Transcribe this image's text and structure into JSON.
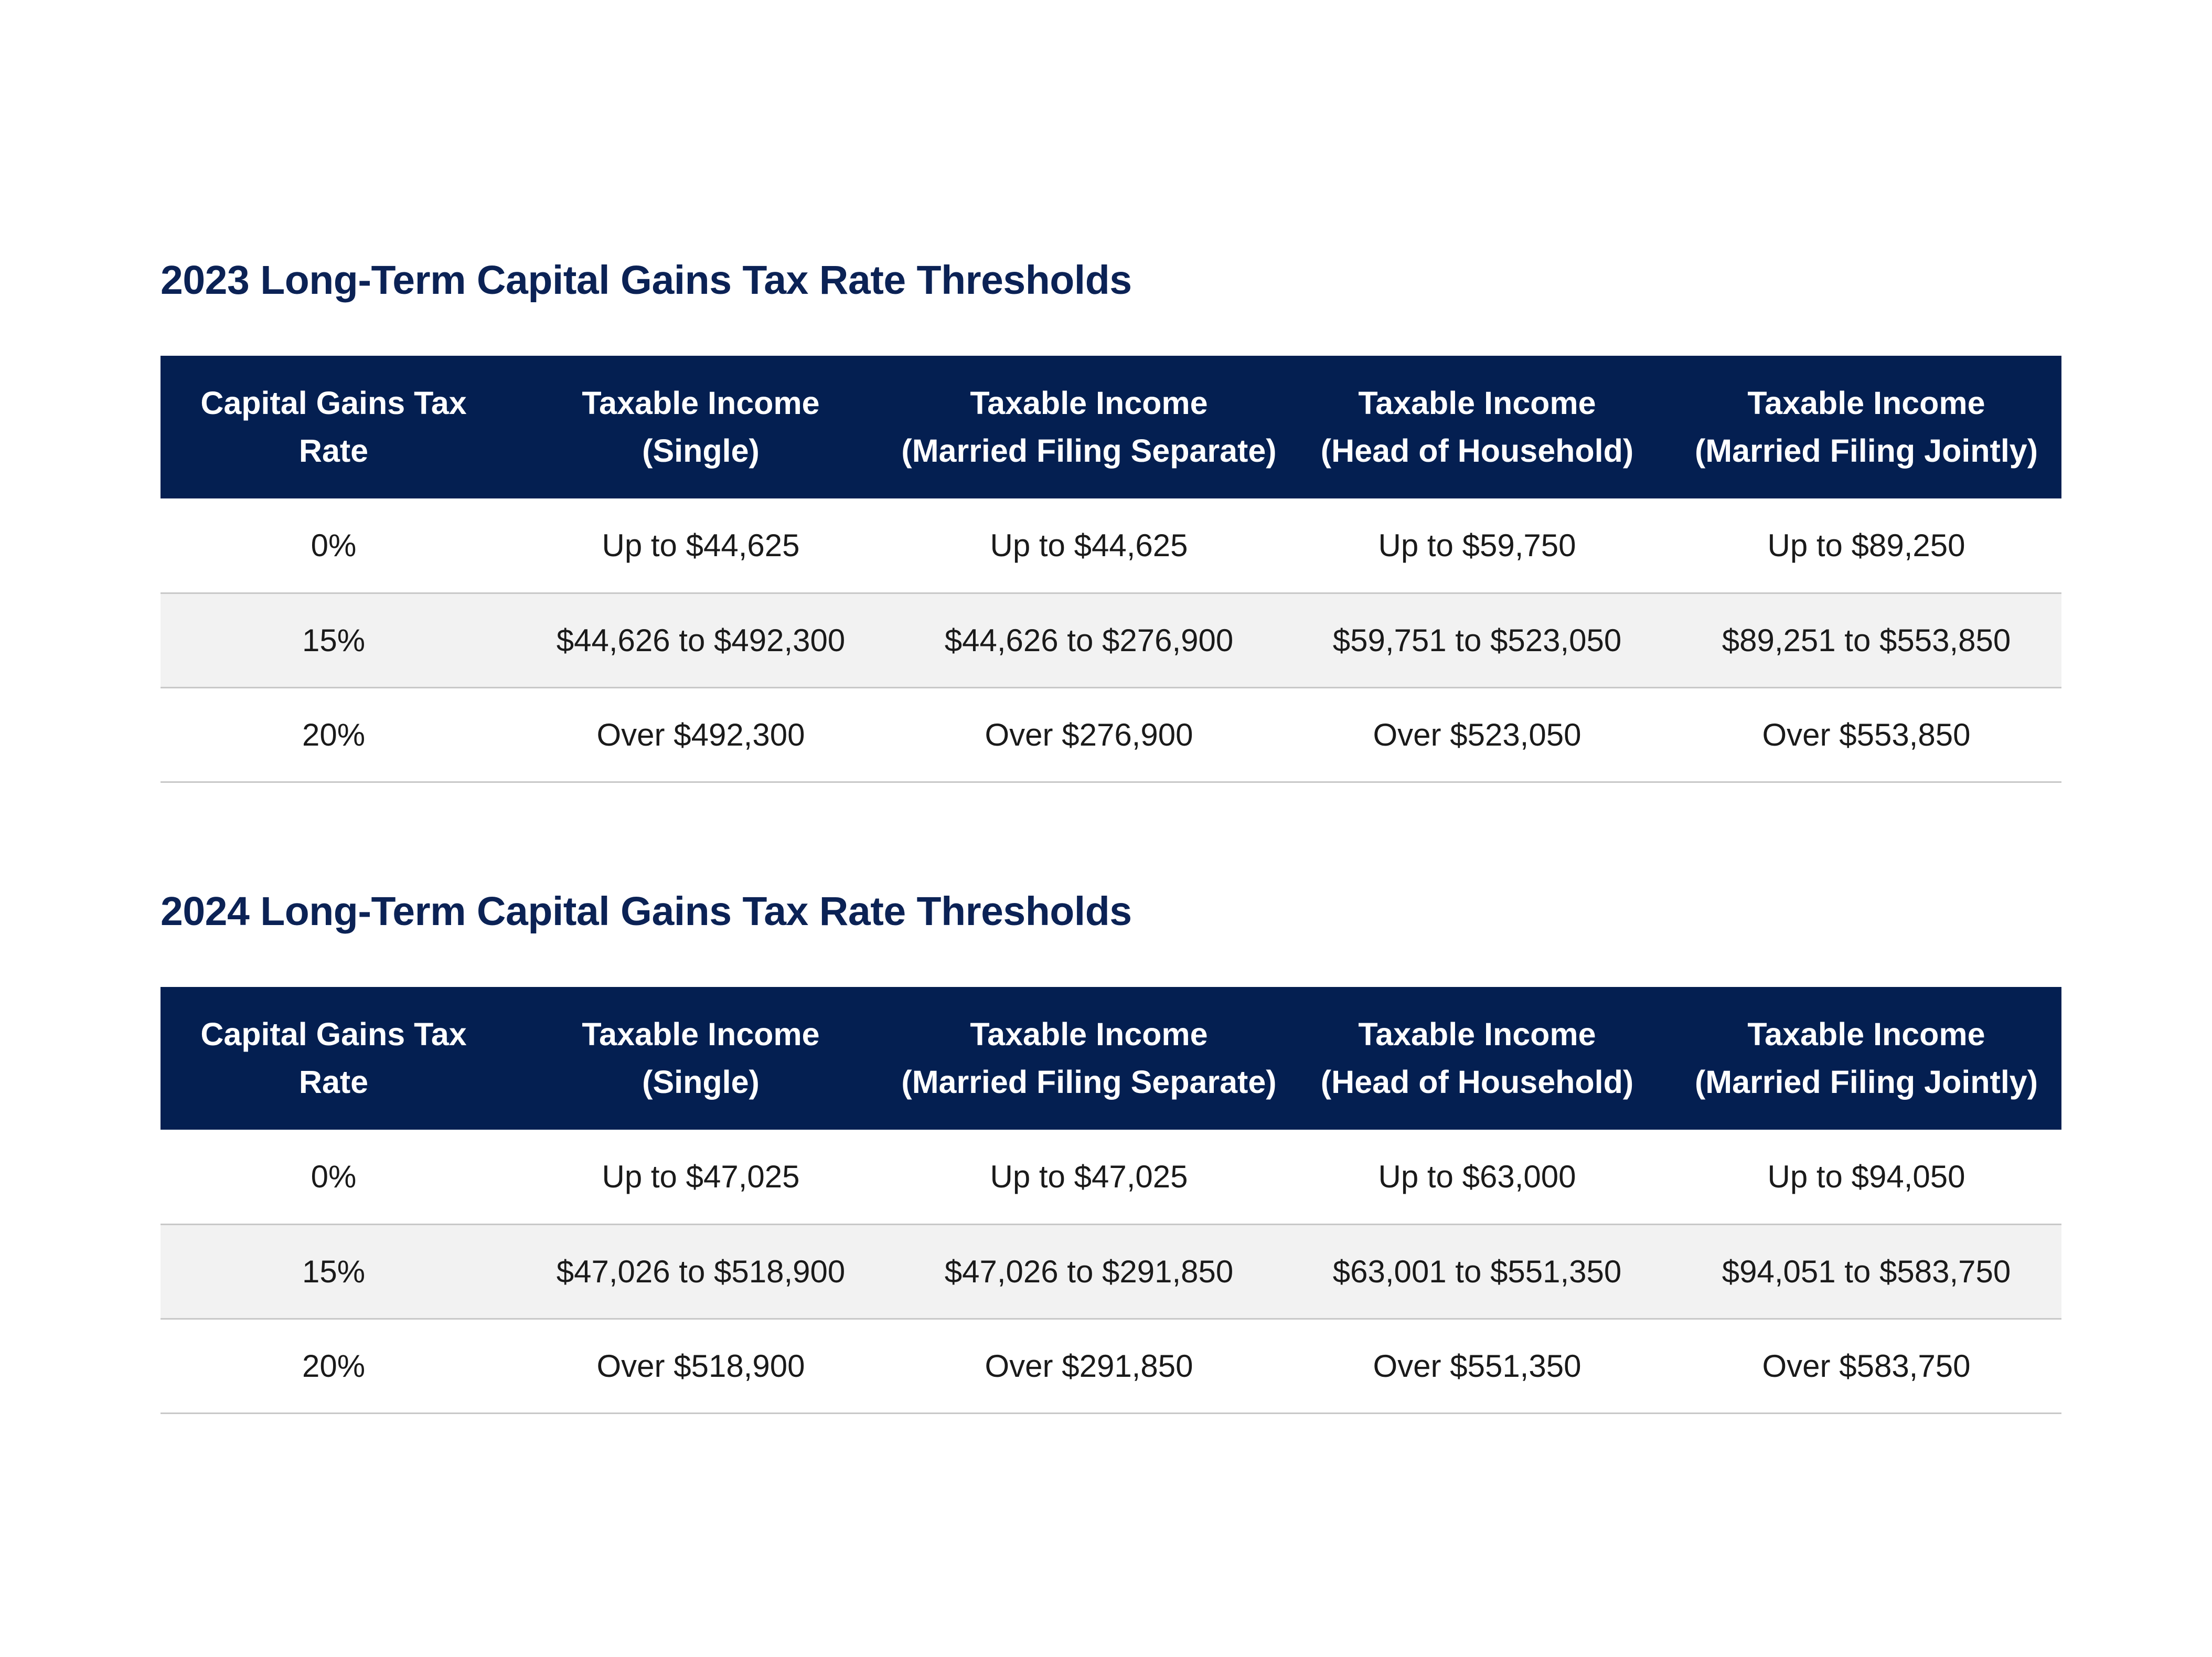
{
  "tables": [
    {
      "title": "2023 Long-Term Capital Gains Tax Rate Thresholds",
      "headers": [
        {
          "line1": "Capital Gains Tax",
          "line2": "Rate"
        },
        {
          "line1": "Taxable Income",
          "line2": "(Single)"
        },
        {
          "line1": "Taxable Income",
          "line2": "(Married Filing Separate)"
        },
        {
          "line1": "Taxable Income",
          "line2": "(Head of Household)"
        },
        {
          "line1": "Taxable Income",
          "line2": "(Married Filing Jointly)"
        }
      ],
      "rows": [
        [
          "0%",
          "Up to $44,625",
          "Up to $44,625",
          "Up to $59,750",
          "Up to $89,250"
        ],
        [
          "15%",
          "$44,626 to $492,300",
          "$44,626 to $276,900",
          "$59,751 to $523,050",
          "$89,251 to $553,850"
        ],
        [
          "20%",
          "Over $492,300",
          "Over $276,900",
          "Over $523,050",
          "Over $553,850"
        ]
      ]
    },
    {
      "title": "2024 Long-Term Capital Gains Tax Rate Thresholds",
      "headers": [
        {
          "line1": "Capital Gains Tax",
          "line2": "Rate"
        },
        {
          "line1": "Taxable Income",
          "line2": "(Single)"
        },
        {
          "line1": "Taxable Income",
          "line2": "(Married Filing Separate)"
        },
        {
          "line1": "Taxable Income",
          "line2": "(Head of Household)"
        },
        {
          "line1": "Taxable Income",
          "line2": "(Married Filing Jointly)"
        }
      ],
      "rows": [
        [
          "0%",
          "Up to $47,025",
          "Up to $47,025",
          "Up to $63,000",
          "Up to $94,050"
        ],
        [
          "15%",
          "$47,026 to $518,900",
          "$47,026 to $291,850",
          "$63,001 to $551,350",
          "$94,051 to $583,750"
        ],
        [
          "20%",
          "Over $518,900",
          "Over $291,850",
          "Over $551,350",
          "Over $583,750"
        ]
      ]
    }
  ],
  "colors": {
    "header_background": "#041f51",
    "title_text": "#0b2255",
    "alt_row_background": "#f2f2f2",
    "row_divider": "#c8c8c8"
  }
}
